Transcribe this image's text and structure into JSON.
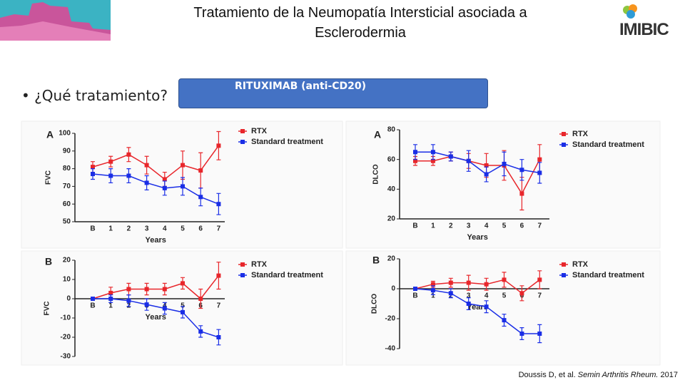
{
  "title": "Tratamiento de la Neumopatía Intersticial asociada a Esclerodermia",
  "logo": "IMIBIC",
  "bullet": "¿Qué tratamiento?",
  "box": "RITUXIMAB (anti-CD20)",
  "citation": {
    "authors": "Doussis D, et al.",
    "journal": "Semin Arthritis Rheum.",
    "year": "2017"
  },
  "chart_data": [
    {
      "type": "line",
      "panel": "A",
      "ylabel": "FVC",
      "xlabel": "Years",
      "categories": [
        "B",
        "1",
        "2",
        "3",
        "4",
        "5",
        "6",
        "7"
      ],
      "ylim": [
        50,
        100
      ],
      "yticks": [
        50,
        60,
        70,
        80,
        90,
        100
      ],
      "series": [
        {
          "name": "RTX",
          "color": "#e8262b",
          "values": [
            81,
            84,
            88,
            82,
            74,
            82,
            79,
            93
          ],
          "errors": [
            3,
            3,
            4,
            5,
            4,
            8,
            10,
            8
          ]
        },
        {
          "name": "Standard treatment",
          "color": "#1a2ee6",
          "values": [
            77,
            76,
            76,
            72,
            69,
            70,
            64,
            60
          ],
          "errors": [
            3,
            4,
            4,
            4,
            4,
            5,
            5,
            6
          ]
        }
      ]
    },
    {
      "type": "line",
      "panel": "A",
      "ylabel": "DLCO",
      "xlabel": "Years",
      "categories": [
        "B",
        "1",
        "2",
        "3",
        "4",
        "5",
        "6",
        "7"
      ],
      "ylim": [
        20,
        80
      ],
      "yticks": [
        20,
        40,
        60,
        80
      ],
      "series": [
        {
          "name": "RTX",
          "color": "#e8262b",
          "values": [
            59,
            59,
            62,
            59,
            56,
            56,
            37,
            60
          ],
          "errors": [
            3,
            3,
            3,
            5,
            8,
            10,
            11,
            10
          ]
        },
        {
          "name": "Standard treatment",
          "color": "#1a2ee6",
          "values": [
            65,
            65,
            62,
            59,
            50,
            57,
            53,
            51
          ],
          "errors": [
            5,
            5,
            3,
            7,
            5,
            8,
            7,
            7
          ]
        }
      ]
    },
    {
      "type": "line",
      "panel": "B",
      "ylabel": "FVC",
      "xlabel": "Years",
      "categories": [
        "B",
        "1",
        "2",
        "3",
        "4",
        "5",
        "6",
        "7"
      ],
      "ylim": [
        -30,
        20
      ],
      "yticks": [
        -30,
        -20,
        -10,
        0,
        10,
        20
      ],
      "series": [
        {
          "name": "RTX",
          "color": "#e8262b",
          "values": [
            0,
            3,
            5,
            5,
            5,
            8,
            0,
            12
          ],
          "errors": [
            0,
            3,
            3,
            3,
            3,
            3,
            5,
            7
          ]
        },
        {
          "name": "Standard treatment",
          "color": "#1a2ee6",
          "values": [
            0,
            0,
            -1,
            -3,
            -5,
            -7,
            -17,
            -20
          ],
          "errors": [
            0,
            2,
            3,
            3,
            3,
            3,
            3,
            4
          ]
        }
      ]
    },
    {
      "type": "line",
      "panel": "B",
      "ylabel": "DLCO",
      "xlabel": "Years",
      "categories": [
        "B",
        "1",
        "2",
        "3",
        "4",
        "5",
        "6",
        "7"
      ],
      "ylim": [
        -40,
        20
      ],
      "yticks": [
        -40,
        -20,
        0,
        20
      ],
      "series": [
        {
          "name": "RTX",
          "color": "#e8262b",
          "values": [
            0,
            3,
            4,
            4,
            3,
            6,
            -3,
            6
          ],
          "errors": [
            0,
            2,
            3,
            5,
            4,
            5,
            5,
            6
          ]
        },
        {
          "name": "Standard treatment",
          "color": "#1a2ee6",
          "values": [
            0,
            -1,
            -3,
            -10,
            -12,
            -21,
            -30,
            -30
          ],
          "errors": [
            0,
            3,
            3,
            4,
            4,
            4,
            4,
            6
          ]
        }
      ]
    }
  ]
}
